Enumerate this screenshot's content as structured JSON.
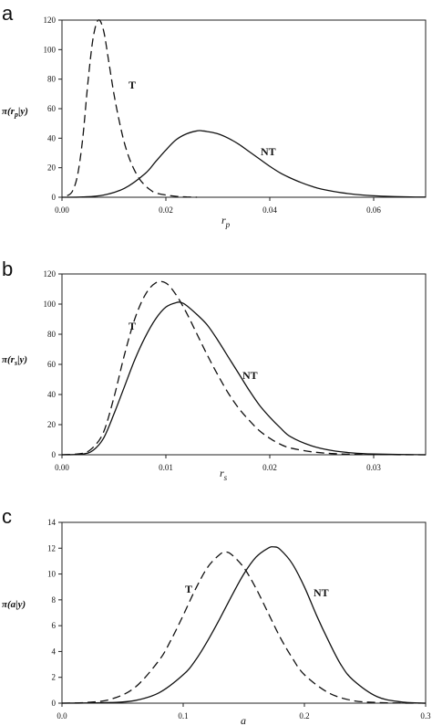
{
  "chart_data": [
    {
      "type": "line",
      "panel": "a",
      "ylabel": "π(r_p|y)",
      "xlabel": "r_p",
      "xlim": [
        0,
        0.07
      ],
      "ylim": [
        0,
        120
      ],
      "xticks": [
        "0.00",
        "0.02",
        "0.04",
        "0.06"
      ],
      "xtick_values": [
        0,
        0.02,
        0.04,
        0.06
      ],
      "yticks": [
        "0",
        "20",
        "40",
        "60",
        "80",
        "100",
        "120"
      ],
      "ytick_values": [
        0,
        20,
        40,
        60,
        80,
        100,
        120
      ],
      "grid": false,
      "series": [
        {
          "name": "T",
          "style": "dashed",
          "x": [
            0.001,
            0.002,
            0.003,
            0.004,
            0.005,
            0.006,
            0.007,
            0.008,
            0.009,
            0.01,
            0.011,
            0.012,
            0.013,
            0.014,
            0.015,
            0.016,
            0.017,
            0.018,
            0.02,
            0.022,
            0.024,
            0.026
          ],
          "y": [
            1,
            4,
            15,
            40,
            78,
            108,
            120,
            113,
            92,
            70,
            52,
            37,
            26,
            18,
            12,
            8,
            5,
            3,
            1.5,
            0.6,
            0.2,
            0
          ]
        },
        {
          "name": "NT",
          "style": "solid",
          "x": [
            0,
            0.004,
            0.008,
            0.012,
            0.016,
            0.018,
            0.02,
            0.022,
            0.024,
            0.026,
            0.027,
            0.028,
            0.03,
            0.032,
            0.034,
            0.036,
            0.038,
            0.04,
            0.042,
            0.044,
            0.046,
            0.048,
            0.05,
            0.054,
            0.058,
            0.062,
            0.066,
            0.07
          ],
          "y": [
            0,
            0.2,
            1.5,
            6,
            16,
            24,
            32,
            39,
            43,
            45,
            45,
            44.5,
            43,
            40,
            36,
            31,
            26,
            21,
            16.5,
            13,
            10,
            7.5,
            5.5,
            3,
            1.5,
            0.7,
            0.3,
            0.1
          ]
        }
      ],
      "annotations": [
        "T",
        "NT"
      ]
    },
    {
      "type": "line",
      "panel": "b",
      "ylabel": "π(r_s|y)",
      "xlabel": "r_s",
      "xlim": [
        0,
        0.035
      ],
      "ylim": [
        0,
        120
      ],
      "xticks": [
        "0.00",
        "0.01",
        "0.02",
        "0.03"
      ],
      "xtick_values": [
        0,
        0.01,
        0.02,
        0.03
      ],
      "yticks": [
        "0",
        "20",
        "40",
        "60",
        "80",
        "100",
        "120"
      ],
      "ytick_values": [
        0,
        20,
        40,
        60,
        80,
        100,
        120
      ],
      "grid": false,
      "series": [
        {
          "name": "T",
          "style": "dashed",
          "x": [
            0,
            0.002,
            0.003,
            0.004,
            0.005,
            0.006,
            0.007,
            0.008,
            0.009,
            0.01,
            0.011,
            0.012,
            0.013,
            0.014,
            0.015,
            0.016,
            0.017,
            0.018,
            0.019,
            0.02,
            0.021,
            0.022,
            0.024,
            0.026,
            0.028,
            0.03,
            0.035
          ],
          "y": [
            0,
            1,
            5,
            15,
            38,
            66,
            90,
            106,
            114,
            114,
            106,
            94,
            80,
            66,
            53,
            41,
            31,
            23,
            16,
            11,
            7,
            4.5,
            2,
            0.8,
            0.3,
            0.1,
            0
          ]
        },
        {
          "name": "NT",
          "style": "solid",
          "x": [
            0,
            0.002,
            0.003,
            0.004,
            0.005,
            0.006,
            0.007,
            0.008,
            0.009,
            0.01,
            0.011,
            0.0115,
            0.012,
            0.013,
            0.014,
            0.015,
            0.016,
            0.017,
            0.018,
            0.019,
            0.02,
            0.021,
            0.022,
            0.024,
            0.026,
            0.028,
            0.03,
            0.035
          ],
          "y": [
            0,
            0.5,
            3,
            11,
            27,
            45,
            63,
            78,
            90,
            98,
            101,
            101,
            99,
            93,
            86,
            76,
            65,
            54,
            43,
            33,
            25,
            18,
            12,
            6,
            2.8,
            1.2,
            0.5,
            0
          ]
        }
      ],
      "annotations": [
        "T",
        "NT"
      ]
    },
    {
      "type": "line",
      "panel": "c",
      "ylabel": "π(a|y)",
      "xlabel": "a",
      "xlim": [
        0,
        0.3
      ],
      "ylim": [
        0,
        14
      ],
      "xticks": [
        "0.0",
        "0.1",
        "0.2",
        "0.3"
      ],
      "xtick_values": [
        0,
        0.1,
        0.2,
        0.3
      ],
      "yticks": [
        "0",
        "2",
        "4",
        "6",
        "8",
        "10",
        "12",
        "14"
      ],
      "ytick_values": [
        0,
        2,
        4,
        6,
        8,
        10,
        12,
        14
      ],
      "grid": false,
      "series": [
        {
          "name": "T",
          "style": "dashed",
          "x": [
            0,
            0.02,
            0.04,
            0.06,
            0.08,
            0.09,
            0.1,
            0.11,
            0.12,
            0.13,
            0.135,
            0.14,
            0.15,
            0.16,
            0.17,
            0.18,
            0.19,
            0.2,
            0.22,
            0.24,
            0.26,
            0.28,
            0.3
          ],
          "y": [
            0,
            0.05,
            0.3,
            1.2,
            3.3,
            4.9,
            6.8,
            8.8,
            10.5,
            11.5,
            11.7,
            11.5,
            10.5,
            8.9,
            7.0,
            5.1,
            3.5,
            2.2,
            0.8,
            0.2,
            0.05,
            0.01,
            0
          ]
        },
        {
          "name": "NT",
          "style": "solid",
          "x": [
            0,
            0.04,
            0.06,
            0.08,
            0.1,
            0.11,
            0.12,
            0.13,
            0.14,
            0.15,
            0.16,
            0.17,
            0.175,
            0.18,
            0.19,
            0.2,
            0.21,
            0.22,
            0.23,
            0.24,
            0.26,
            0.28,
            0.3
          ],
          "y": [
            0,
            0.05,
            0.2,
            0.8,
            2.2,
            3.3,
            4.8,
            6.5,
            8.3,
            10.0,
            11.3,
            12.0,
            12.1,
            11.9,
            10.8,
            9.0,
            6.8,
            4.8,
            3.0,
            1.8,
            0.5,
            0.1,
            0
          ]
        }
      ],
      "annotations": [
        "T",
        "NT"
      ]
    }
  ]
}
